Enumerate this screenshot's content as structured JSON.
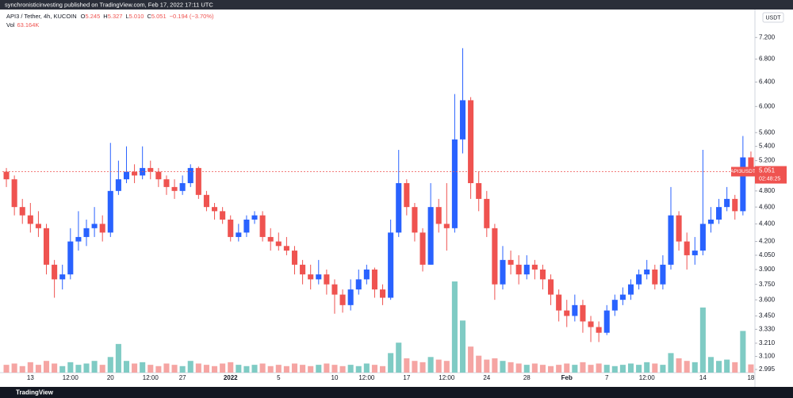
{
  "header": {
    "text": "synchronisticinvesting published on TradingView.com, Feb 17, 2022 17:11 UTC"
  },
  "footer": {
    "brand": "TradingView"
  },
  "chart_data": {
    "type": "candlestick",
    "legend": {
      "symbol": "API3 / Tether, 4h, KUCOIN",
      "items": [
        {
          "label": "O",
          "value": "5.245"
        },
        {
          "label": "H",
          "value": "5.327"
        },
        {
          "label": "L",
          "value": "5.010"
        },
        {
          "label": "C",
          "value": "5.051"
        }
      ],
      "change": "−0.194 (−3.70%)",
      "volume_name": "Vol",
      "volume_value": "63.164K"
    },
    "currency": "USDT",
    "last_price": {
      "symbol": "API3USDT",
      "value": 5.051,
      "countdown": "02:48:25",
      "color": "#ef5350"
    },
    "up_color": "#2962ff",
    "down_color": "#ef5350",
    "volume_up_color": "#7fcbc4",
    "volume_down_color": "#f5a5a3",
    "log_scale": true,
    "grid": false,
    "ylim": [
      2.97,
      7.72
    ],
    "yticks": [
      {
        "value": 7.2,
        "label": "7.200"
      },
      {
        "value": 6.8,
        "label": "6.800"
      },
      {
        "value": 6.4,
        "label": "6.400"
      },
      {
        "value": 6.0,
        "label": "6.000"
      },
      {
        "value": 5.6,
        "label": "5.600"
      },
      {
        "value": 5.4,
        "label": "5.400"
      },
      {
        "value": 5.2,
        "label": "5.200"
      },
      {
        "value": 4.8,
        "label": "4.800"
      },
      {
        "value": 4.6,
        "label": "4.600"
      },
      {
        "value": 4.4,
        "label": "4.400"
      },
      {
        "value": 4.2,
        "label": "4.200"
      },
      {
        "value": 4.05,
        "label": "4.050"
      },
      {
        "value": 3.9,
        "label": "3.900"
      },
      {
        "value": 3.75,
        "label": "3.750"
      },
      {
        "value": 3.6,
        "label": "3.600"
      },
      {
        "value": 3.45,
        "label": "3.450"
      },
      {
        "value": 3.33,
        "label": "3.330"
      },
      {
        "value": 3.21,
        "label": "3.210"
      },
      {
        "value": 3.1,
        "label": "3.100"
      },
      2.995
    ],
    "categories": [
      null,
      null,
      null,
      "13",
      null,
      null,
      null,
      null,
      "12:00",
      null,
      null,
      null,
      null,
      "20",
      null,
      null,
      null,
      null,
      "12:00",
      null,
      null,
      null,
      "27",
      null,
      null,
      null,
      null,
      null,
      "2022",
      null,
      null,
      null,
      null,
      null,
      "5",
      null,
      null,
      null,
      null,
      null,
      null,
      "10",
      null,
      null,
      null,
      "12:00",
      null,
      null,
      null,
      null,
      "17",
      null,
      null,
      null,
      null,
      "12:00",
      null,
      null,
      null,
      null,
      "24",
      null,
      null,
      null,
      null,
      "28",
      null,
      null,
      null,
      null,
      "Feb",
      null,
      null,
      null,
      null,
      "7",
      null,
      null,
      null,
      null,
      "12:00",
      null,
      null,
      null,
      null,
      null,
      null,
      "14",
      null,
      null,
      null,
      null,
      null,
      "18"
    ],
    "open": [
      5.05,
      4.95,
      4.6,
      4.5,
      4.4,
      4.35,
      3.95,
      3.8,
      3.85,
      4.2,
      4.25,
      4.35,
      4.4,
      4.3,
      4.8,
      4.95,
      5.05,
      5.0,
      5.1,
      5.05,
      4.95,
      4.85,
      4.8,
      4.9,
      5.1,
      4.75,
      4.6,
      4.55,
      4.45,
      4.25,
      4.3,
      4.45,
      4.5,
      4.25,
      4.2,
      4.15,
      4.1,
      3.95,
      3.85,
      3.8,
      3.85,
      3.75,
      3.65,
      3.55,
      3.7,
      3.8,
      3.9,
      3.7,
      3.62,
      4.3,
      4.9,
      4.6,
      4.3,
      3.95,
      4.6,
      4.4,
      4.35,
      5.5,
      6.1,
      4.9,
      4.7,
      4.35,
      3.75,
      4.0,
      3.95,
      3.85,
      3.95,
      3.9,
      3.8,
      3.65,
      3.5,
      3.45,
      3.55,
      3.4,
      3.35,
      3.3,
      3.5,
      3.6,
      3.65,
      3.75,
      3.85,
      3.9,
      3.75,
      3.95,
      4.5,
      4.2,
      4.05,
      4.1,
      4.4,
      4.45,
      4.6,
      4.7,
      4.55,
      5.245
    ],
    "high": [
      5.1,
      5.0,
      4.7,
      4.65,
      4.55,
      4.4,
      4.0,
      3.95,
      4.35,
      4.55,
      4.45,
      4.6,
      4.5,
      5.45,
      5.2,
      5.4,
      5.15,
      5.4,
      5.2,
      5.1,
      5.0,
      4.95,
      5.0,
      5.15,
      5.12,
      4.8,
      4.65,
      4.6,
      4.5,
      4.4,
      4.5,
      4.55,
      4.55,
      4.35,
      4.3,
      4.25,
      4.15,
      4.0,
      3.95,
      4.0,
      3.9,
      3.8,
      3.7,
      3.8,
      3.9,
      3.95,
      3.92,
      3.75,
      4.45,
      5.35,
      4.95,
      4.65,
      4.35,
      4.9,
      4.7,
      4.9,
      6.2,
      7.0,
      6.15,
      5.05,
      4.8,
      4.4,
      4.15,
      4.1,
      4.05,
      4.05,
      4.0,
      3.95,
      3.85,
      3.7,
      3.6,
      3.65,
      3.6,
      3.45,
      3.4,
      3.55,
      3.65,
      3.72,
      3.8,
      3.9,
      4.0,
      3.95,
      4.05,
      4.85,
      4.55,
      4.3,
      4.25,
      5.35,
      4.6,
      4.7,
      4.85,
      4.75,
      5.55,
      5.327
    ],
    "low": [
      4.85,
      4.5,
      4.4,
      4.3,
      4.25,
      3.85,
      3.62,
      3.7,
      3.8,
      4.1,
      4.15,
      4.25,
      4.2,
      4.25,
      4.75,
      4.9,
      4.9,
      4.95,
      4.95,
      4.85,
      4.75,
      4.7,
      4.75,
      4.85,
      4.7,
      4.55,
      4.45,
      4.4,
      4.2,
      4.2,
      4.25,
      4.4,
      4.2,
      4.1,
      4.1,
      4.05,
      3.85,
      3.75,
      3.7,
      3.75,
      3.65,
      3.47,
      3.48,
      3.5,
      3.65,
      3.75,
      3.62,
      3.55,
      3.6,
      4.25,
      4.5,
      4.2,
      3.88,
      3.95,
      4.3,
      4.1,
      4.3,
      5.3,
      4.7,
      4.55,
      4.25,
      3.6,
      3.7,
      3.85,
      3.75,
      3.8,
      3.8,
      3.7,
      3.55,
      3.4,
      3.35,
      3.4,
      3.3,
      3.22,
      3.22,
      3.28,
      3.45,
      3.55,
      3.6,
      3.7,
      3.8,
      3.7,
      3.7,
      3.9,
      4.1,
      3.9,
      3.95,
      4.05,
      4.3,
      4.4,
      4.55,
      4.45,
      4.5,
      5.01
    ],
    "close": [
      4.95,
      4.6,
      4.5,
      4.4,
      4.35,
      3.95,
      3.8,
      3.85,
      4.2,
      4.25,
      4.35,
      4.4,
      4.3,
      4.8,
      4.95,
      5.05,
      5.0,
      5.1,
      5.05,
      4.95,
      4.85,
      4.8,
      4.9,
      5.1,
      4.75,
      4.6,
      4.55,
      4.45,
      4.25,
      4.3,
      4.45,
      4.5,
      4.25,
      4.2,
      4.15,
      4.1,
      3.95,
      3.85,
      3.8,
      3.85,
      3.75,
      3.65,
      3.55,
      3.7,
      3.8,
      3.9,
      3.7,
      3.62,
      4.3,
      4.9,
      4.6,
      4.3,
      3.95,
      4.6,
      4.4,
      4.35,
      5.5,
      6.1,
      4.9,
      4.7,
      4.35,
      3.75,
      4.0,
      3.95,
      3.85,
      3.95,
      3.9,
      3.8,
      3.65,
      3.5,
      3.45,
      3.55,
      3.4,
      3.35,
      3.3,
      3.5,
      3.6,
      3.65,
      3.75,
      3.85,
      3.9,
      3.75,
      3.95,
      4.5,
      4.2,
      4.05,
      4.1,
      4.4,
      4.45,
      4.6,
      4.7,
      4.55,
      5.245,
      5.051
    ],
    "volume": [
      60000,
      70000,
      50000,
      80000,
      60000,
      90000,
      70000,
      50000,
      80000,
      60000,
      70000,
      90000,
      60000,
      120000,
      220000,
      90000,
      70000,
      80000,
      60000,
      50000,
      70000,
      60000,
      50000,
      90000,
      70000,
      60000,
      50000,
      70000,
      80000,
      60000,
      50000,
      60000,
      70000,
      50000,
      60000,
      50000,
      70000,
      60000,
      50000,
      60000,
      70000,
      60000,
      50000,
      60000,
      50000,
      70000,
      60000,
      50000,
      150000,
      230000,
      110000,
      90000,
      80000,
      120000,
      100000,
      90000,
      700000,
      400000,
      200000,
      130000,
      100000,
      110000,
      90000,
      80000,
      70000,
      60000,
      70000,
      60000,
      50000,
      60000,
      70000,
      60000,
      80000,
      60000,
      70000,
      60000,
      50000,
      60000,
      70000,
      60000,
      80000,
      70000,
      60000,
      150000,
      110000,
      90000,
      80000,
      500000,
      120000,
      90000,
      100000,
      80000,
      320000,
      63164
    ]
  }
}
